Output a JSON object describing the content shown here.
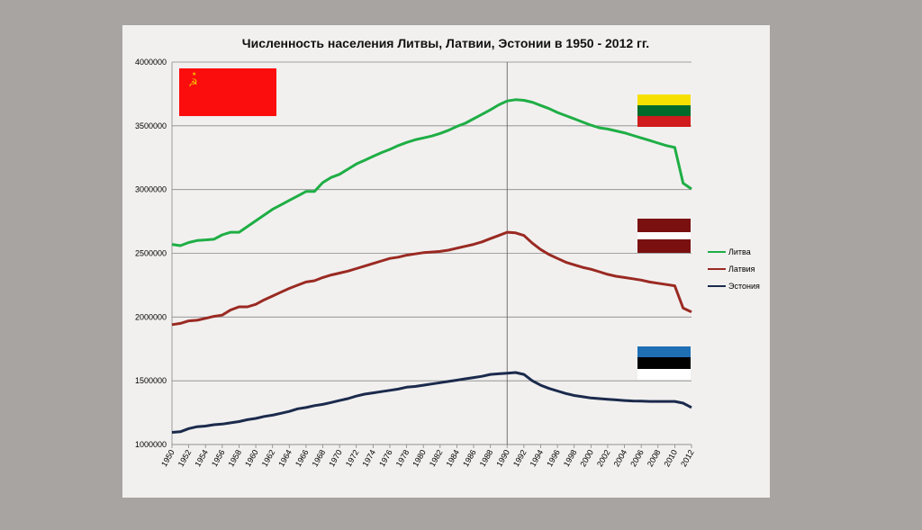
{
  "chart_data": {
    "type": "line",
    "title": "Численность населения Литвы, Латвии, Эстонии в 1950 - 2012 гг.",
    "xlabel": "",
    "ylabel": "",
    "xlim": [
      1950,
      2012
    ],
    "ylim": [
      1000000,
      4000000
    ],
    "y_ticks": [
      1000000,
      1500000,
      2000000,
      2500000,
      3000000,
      3500000,
      4000000
    ],
    "y_tick_labels": [
      "1000000",
      "1500000",
      "2000000",
      "2500000",
      "3000000",
      "3500000",
      "4000000"
    ],
    "x_ticks": [
      1950,
      1952,
      1954,
      1956,
      1958,
      1960,
      1962,
      1964,
      1966,
      1968,
      1970,
      1972,
      1974,
      1976,
      1978,
      1980,
      1982,
      1984,
      1986,
      1988,
      1990,
      1992,
      1994,
      1996,
      1998,
      2000,
      2002,
      2004,
      2006,
      2008,
      2010,
      2012
    ],
    "x_tick_labels": [
      "1950",
      "1952",
      "1954",
      "1956",
      "1958",
      "1960",
      "1962",
      "1964",
      "1966",
      "1968",
      "1970",
      "1972",
      "1974",
      "1976",
      "1978",
      "1980",
      "1982",
      "1984",
      "1986",
      "1988",
      "1990",
      "1992",
      "1994",
      "1996",
      "1998",
      "2000",
      "2002",
      "2004",
      "2006",
      "2008",
      "2010",
      "2012"
    ],
    "grid": "horizontal",
    "reference_line_x": 1990,
    "legend_position": "right",
    "series": [
      {
        "name": "Литва",
        "color": "#1fae45",
        "x": [
          1950,
          1951,
          1952,
          1953,
          1954,
          1955,
          1956,
          1957,
          1958,
          1959,
          1960,
          1961,
          1962,
          1963,
          1964,
          1965,
          1966,
          1967,
          1968,
          1969,
          1970,
          1971,
          1972,
          1973,
          1974,
          1975,
          1976,
          1977,
          1978,
          1979,
          1980,
          1981,
          1982,
          1983,
          1984,
          1985,
          1986,
          1987,
          1988,
          1989,
          1990,
          1991,
          1992,
          1993,
          1994,
          1995,
          1996,
          1997,
          1998,
          1999,
          2000,
          2001,
          2002,
          2003,
          2004,
          2005,
          2006,
          2007,
          2008,
          2009,
          2010,
          2011,
          2012
        ],
        "values": [
          2570000,
          2560000,
          2585000,
          2600000,
          2605000,
          2610000,
          2645000,
          2665000,
          2665000,
          2710000,
          2755000,
          2800000,
          2845000,
          2880000,
          2915000,
          2950000,
          2985000,
          2985000,
          3055000,
          3095000,
          3120000,
          3160000,
          3200000,
          3230000,
          3260000,
          3290000,
          3315000,
          3345000,
          3370000,
          3390000,
          3405000,
          3420000,
          3440000,
          3465000,
          3495000,
          3520000,
          3555000,
          3590000,
          3625000,
          3665000,
          3695000,
          3705000,
          3700000,
          3685000,
          3660000,
          3635000,
          3605000,
          3580000,
          3555000,
          3530000,
          3505000,
          3485000,
          3475000,
          3460000,
          3445000,
          3425000,
          3405000,
          3385000,
          3365000,
          3345000,
          3330000,
          3050000,
          3005000
        ]
      },
      {
        "name": "Латвия",
        "color": "#9a2a22",
        "x": [
          1950,
          1951,
          1952,
          1953,
          1954,
          1955,
          1956,
          1957,
          1958,
          1959,
          1960,
          1961,
          1962,
          1963,
          1964,
          1965,
          1966,
          1967,
          1968,
          1969,
          1970,
          1971,
          1972,
          1973,
          1974,
          1975,
          1976,
          1977,
          1978,
          1979,
          1980,
          1981,
          1982,
          1983,
          1984,
          1985,
          1986,
          1987,
          1988,
          1989,
          1990,
          1991,
          1992,
          1993,
          1994,
          1995,
          1996,
          1997,
          1998,
          1999,
          2000,
          2001,
          2002,
          2003,
          2004,
          2005,
          2006,
          2007,
          2008,
          2009,
          2010,
          2011,
          2012
        ],
        "values": [
          1940000,
          1950000,
          1970000,
          1975000,
          1990000,
          2005000,
          2015000,
          2055000,
          2080000,
          2080000,
          2100000,
          2135000,
          2165000,
          2195000,
          2225000,
          2250000,
          2275000,
          2285000,
          2310000,
          2330000,
          2345000,
          2360000,
          2380000,
          2400000,
          2420000,
          2440000,
          2460000,
          2470000,
          2485000,
          2495000,
          2505000,
          2510000,
          2515000,
          2525000,
          2540000,
          2555000,
          2570000,
          2590000,
          2615000,
          2640000,
          2665000,
          2660000,
          2640000,
          2580000,
          2530000,
          2490000,
          2460000,
          2430000,
          2410000,
          2390000,
          2375000,
          2355000,
          2335000,
          2320000,
          2310000,
          2300000,
          2290000,
          2275000,
          2265000,
          2255000,
          2245000,
          2070000,
          2040000
        ]
      },
      {
        "name": "Эстония",
        "color": "#1b2a4c",
        "x": [
          1950,
          1951,
          1952,
          1953,
          1954,
          1955,
          1956,
          1957,
          1958,
          1959,
          1960,
          1961,
          1962,
          1963,
          1964,
          1965,
          1966,
          1967,
          1968,
          1969,
          1970,
          1971,
          1972,
          1973,
          1974,
          1975,
          1976,
          1977,
          1978,
          1979,
          1980,
          1981,
          1982,
          1983,
          1984,
          1985,
          1986,
          1987,
          1988,
          1989,
          1990,
          1991,
          1992,
          1993,
          1994,
          1995,
          1996,
          1997,
          1998,
          1999,
          2000,
          2001,
          2002,
          2003,
          2004,
          2005,
          2006,
          2007,
          2008,
          2009,
          2010,
          2011,
          2012
        ],
        "values": [
          1095000,
          1100000,
          1125000,
          1140000,
          1145000,
          1155000,
          1160000,
          1170000,
          1180000,
          1195000,
          1205000,
          1220000,
          1230000,
          1245000,
          1260000,
          1280000,
          1290000,
          1305000,
          1315000,
          1330000,
          1345000,
          1360000,
          1380000,
          1395000,
          1405000,
          1415000,
          1425000,
          1435000,
          1450000,
          1455000,
          1465000,
          1475000,
          1485000,
          1495000,
          1505000,
          1515000,
          1525000,
          1535000,
          1550000,
          1555000,
          1560000,
          1565000,
          1550000,
          1500000,
          1465000,
          1440000,
          1420000,
          1400000,
          1385000,
          1375000,
          1365000,
          1360000,
          1355000,
          1350000,
          1345000,
          1342000,
          1340000,
          1338000,
          1338000,
          1338000,
          1338000,
          1325000,
          1290000
        ]
      }
    ],
    "flags": [
      {
        "name": "ussr-flag",
        "colors": [
          "#fb0d0d",
          "#f2c400"
        ]
      },
      {
        "name": "lithuania-flag",
        "colors": [
          "#f5e000",
          "#006a2b",
          "#d01c1c"
        ]
      },
      {
        "name": "latvia-flag",
        "colors": [
          "#7a1010",
          "#ffffff"
        ]
      },
      {
        "name": "estonia-flag",
        "colors": [
          "#1f6fb5",
          "#000000",
          "#ffffff"
        ]
      }
    ]
  }
}
